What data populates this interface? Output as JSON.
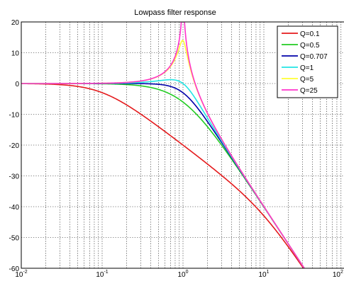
{
  "chart_data": {
    "type": "line",
    "title": "Lowpass filter response",
    "xlabel": "",
    "ylabel": "",
    "x_scale": "log",
    "xlim": [
      0.01,
      100
    ],
    "ylim": [
      -60,
      20
    ],
    "grid": true,
    "legend_position": "top-right",
    "y_ticks": [
      20,
      10,
      0,
      -10,
      -20,
      -30,
      -40,
      -50,
      -60
    ],
    "y_tick_labels": [
      "20",
      "10",
      "0",
      "-10",
      "-20",
      "-30",
      "-40",
      "-50",
      "-60"
    ],
    "x_ticks": [
      0.01,
      0.1,
      1,
      10,
      100
    ],
    "x_tick_labels": [
      {
        "base": "10",
        "exp": "-2"
      },
      {
        "base": "10",
        "exp": "-1"
      },
      {
        "base": "10",
        "exp": "0"
      },
      {
        "base": "10",
        "exp": "1"
      },
      {
        "base": "10",
        "exp": "2"
      }
    ],
    "series": [
      {
        "name": "Q=0.1",
        "color": "#e41a1c",
        "q": 0.1
      },
      {
        "name": "Q=0.5",
        "color": "#22cc22",
        "q": 0.5
      },
      {
        "name": "Q=0.707",
        "color": "#0000aa",
        "q": 0.707
      },
      {
        "name": "Q=1",
        "color": "#22e5e5",
        "q": 1
      },
      {
        "name": "Q=5",
        "color": "#ffff33",
        "q": 5
      },
      {
        "name": "Q=25",
        "color": "#ff33cc",
        "q": 25
      }
    ]
  }
}
